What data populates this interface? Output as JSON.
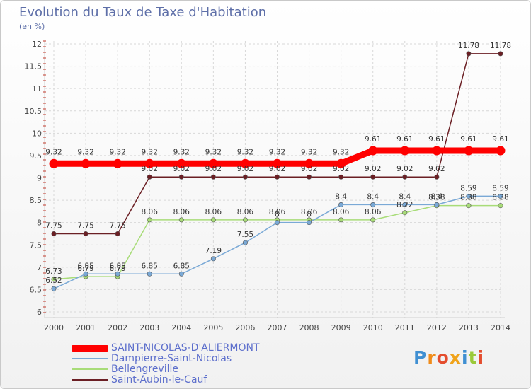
{
  "title": "Evolution du Taux de Taxe d'Habitation",
  "subtitle": "(en %)",
  "logo": "Proxiti",
  "chart_data": {
    "type": "line",
    "title": "Evolution du Taux de Taxe d'Habitation",
    "ylabel": "(en %)",
    "ylim": [
      6,
      12
    ],
    "yticks": [
      "6",
      "6.5",
      "7",
      "7.5",
      "8",
      "8.5",
      "9",
      "9.5",
      "10",
      "10.5",
      "11",
      "11.5",
      "12"
    ],
    "categories": [
      "2000",
      "2001",
      "2002",
      "2003",
      "2004",
      "2005",
      "2006",
      "2007",
      "2008",
      "2009",
      "2010",
      "2011",
      "2012",
      "2013",
      "2014"
    ],
    "grid": true,
    "legend": "bottom-left",
    "series": [
      {
        "name": "Saint-Aubin-le-Cauf",
        "color": "#6b1f24",
        "values": [
          7.75,
          7.75,
          7.75,
          9.02,
          9.02,
          9.02,
          9.02,
          9.02,
          9.02,
          9.02,
          9.02,
          9.02,
          9.02,
          11.78,
          11.78
        ]
      },
      {
        "name": "Bellengreville",
        "color": "#a8dc78",
        "values": [
          6.73,
          6.79,
          6.79,
          8.06,
          8.06,
          8.06,
          8.06,
          8.06,
          8.06,
          8.06,
          8.06,
          8.22,
          8.38,
          8.38,
          8.38
        ]
      },
      {
        "name": "Dampierre-Saint-Nicolas",
        "color": "#7aa9d6",
        "values": [
          6.52,
          6.85,
          6.85,
          6.85,
          6.85,
          7.19,
          7.55,
          8.0,
          8.0,
          8.4,
          8.4,
          8.4,
          8.4,
          8.59,
          8.59
        ]
      },
      {
        "name": "SAINT-NICOLAS-D'ALIERMONT",
        "color": "#ff0000",
        "values": [
          9.32,
          9.32,
          9.32,
          9.32,
          9.32,
          9.32,
          9.32,
          9.32,
          9.32,
          9.32,
          9.61,
          9.61,
          9.61,
          9.61,
          9.61
        ]
      }
    ],
    "data_labels": [
      {
        "series": "Saint-Aubin-le-Cauf",
        "labels": [
          "7.75",
          "7.75",
          "7.75",
          "9.02",
          "9.02",
          "9.02",
          "9.02",
          "9.02",
          "9.02",
          "9.02",
          "9.02",
          "9.02",
          "9.02",
          "11.78",
          "11.78"
        ]
      },
      {
        "series": "Bellengreville",
        "labels": [
          "6.73",
          "6.79",
          "6.79",
          "8.06",
          "8.06",
          "8.06",
          "8.06",
          "8.06",
          "8.06",
          "8.06",
          "8.06",
          "8.22",
          "8.38",
          "8.38",
          "8.38"
        ]
      },
      {
        "series": "Dampierre-Saint-Nicolas",
        "labels": [
          "6.52",
          "6.85",
          "6.85",
          "6.85",
          "6.85",
          "7.19",
          "7.55",
          "8",
          "8",
          "8.4",
          "8.4",
          "8.4",
          "8.4",
          "8.59",
          "8.59"
        ]
      },
      {
        "series": "SAINT-NICOLAS-D'ALIERMONT",
        "labels": [
          "9.32",
          "9.32",
          "9.32",
          "9.32",
          "9.32",
          "9.32",
          "9.32",
          "9.32",
          "9.32",
          "9.32",
          "9.61",
          "9.61",
          "9.61",
          "9.61",
          "9.61"
        ]
      }
    ]
  },
  "legend": [
    {
      "name": "SAINT-NICOLAS-D'ALIERMONT",
      "color": "#ff0000"
    },
    {
      "name": "Dampierre-Saint-Nicolas",
      "color": "#7aa9d6"
    },
    {
      "name": "Bellengreville",
      "color": "#a8dc78"
    },
    {
      "name": "Saint-Aubin-le-Cauf",
      "color": "#6b1f24"
    }
  ]
}
